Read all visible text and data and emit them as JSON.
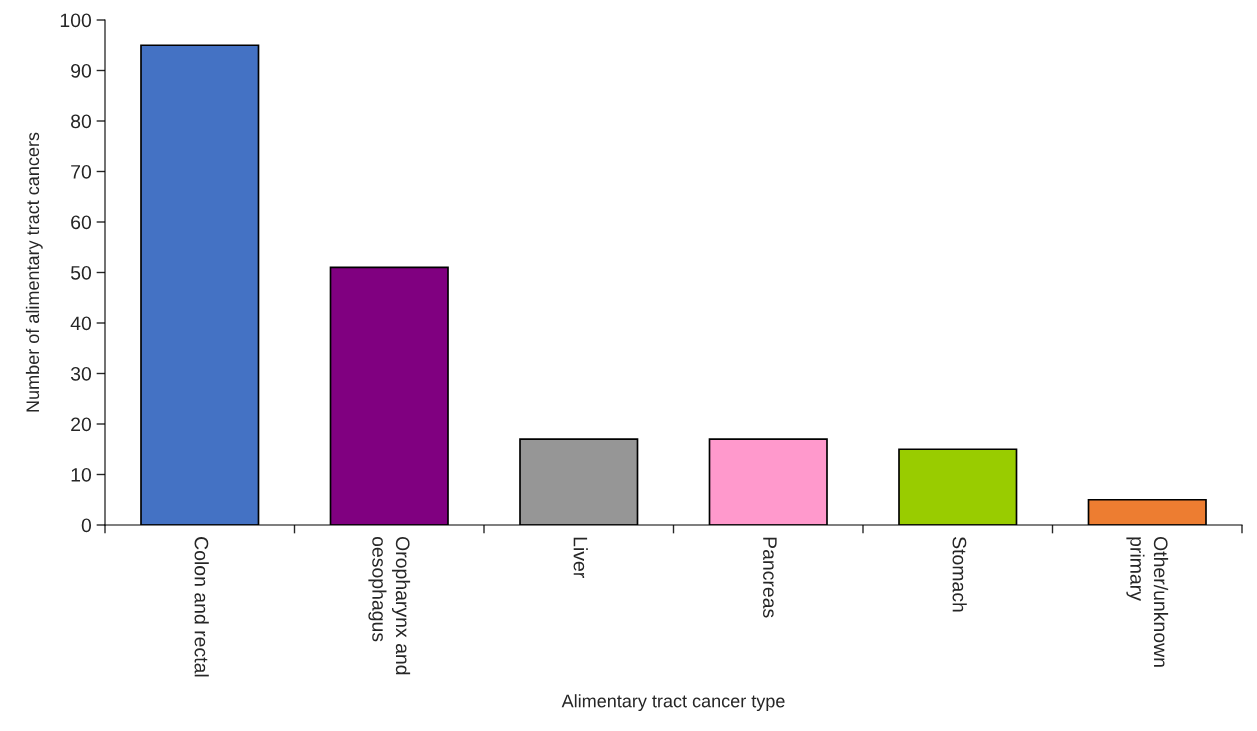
{
  "chart_data": {
    "type": "bar",
    "xlabel": "Alimentary tract cancer type",
    "ylabel": "Number of alimentary tract cancers",
    "categories": [
      "Colon and rectal",
      "Oropharynx and\noesophagus",
      "Liver",
      "Pancreas",
      "Stomach",
      "Other/unknown\nprimary"
    ],
    "values": [
      95,
      51,
      17,
      17,
      15,
      5
    ],
    "colors": [
      "#4472c4",
      "#800080",
      "#969696",
      "#ff99cc",
      "#99cc00",
      "#ed7d31"
    ],
    "ylim": [
      0,
      100
    ],
    "yticks": [
      0,
      10,
      20,
      30,
      40,
      50,
      60,
      70,
      80,
      90,
      100
    ],
    "grid": false,
    "legend": false
  }
}
